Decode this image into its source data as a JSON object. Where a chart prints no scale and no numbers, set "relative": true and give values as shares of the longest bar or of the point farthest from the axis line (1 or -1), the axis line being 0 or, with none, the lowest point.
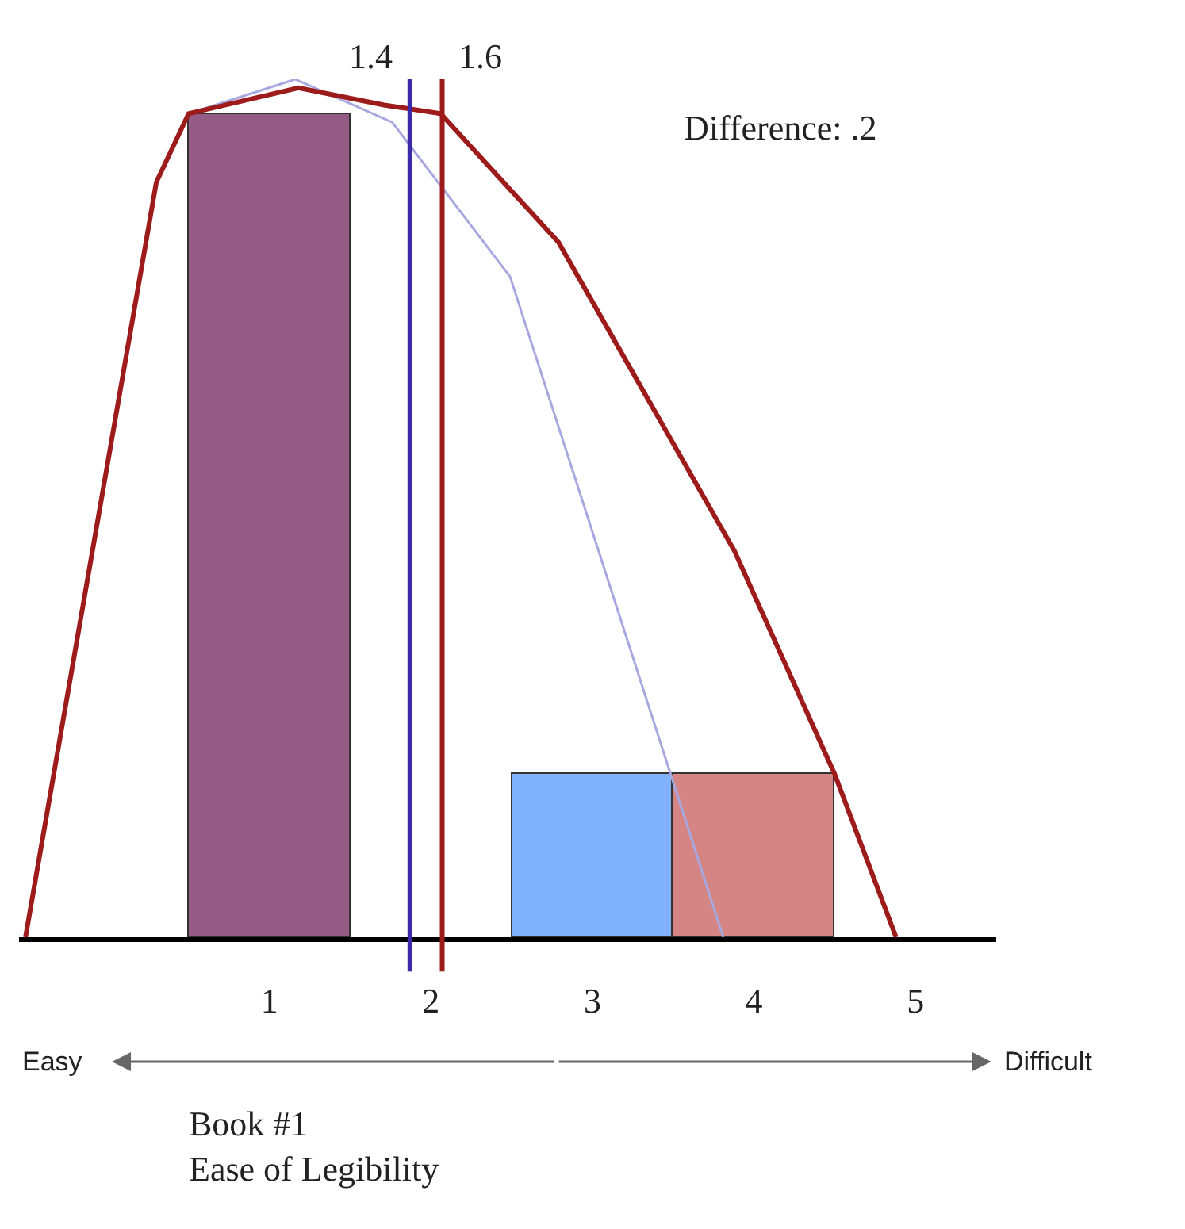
{
  "chart_data": {
    "type": "bar",
    "relative": true,
    "xlabel": "Book #1\nEase of Legibility",
    "xlim": [
      -0.55,
      5.5
    ],
    "xticks": [
      1,
      2,
      3,
      4,
      5
    ],
    "tick_labels": "x",
    "series": [
      {
        "x": [
          1,
          3,
          4
        ],
        "values": [
          0.96,
          0.19,
          0.19
        ],
        "colors": [
          "#945c85",
          "#7fb2fb",
          "#d58684"
        ]
      },
      {
        "type": "line",
        "color": "#a8a8e0",
        "x": [
          -0.51,
          0.3,
          0.5,
          1.16,
          1.76,
          2.49,
          3.81
        ],
        "values": [
          0,
          0.88,
          0.96,
          1.0,
          0.95,
          0.77,
          0
        ]
      },
      {
        "type": "line",
        "color": "#9e1b1b",
        "x": [
          -0.51,
          0.3,
          0.5,
          1.18,
          1.71,
          2.06,
          2.79,
          3.88,
          4.5,
          4.88
        ],
        "values": [
          0,
          0.88,
          0.96,
          0.99,
          0.97,
          0.96,
          0.81,
          0.45,
          0.19,
          0
        ]
      }
    ],
    "ref_lines": [
      {
        "axis": "x",
        "value": 1.87,
        "color": "#3b2ba8"
      },
      {
        "axis": "x",
        "value": 2.07,
        "color": "#9e1b1b"
      }
    ],
    "annotations": [
      "Difference: .2",
      "Easy",
      "Difficult",
      "1.4",
      "1.6"
    ]
  }
}
